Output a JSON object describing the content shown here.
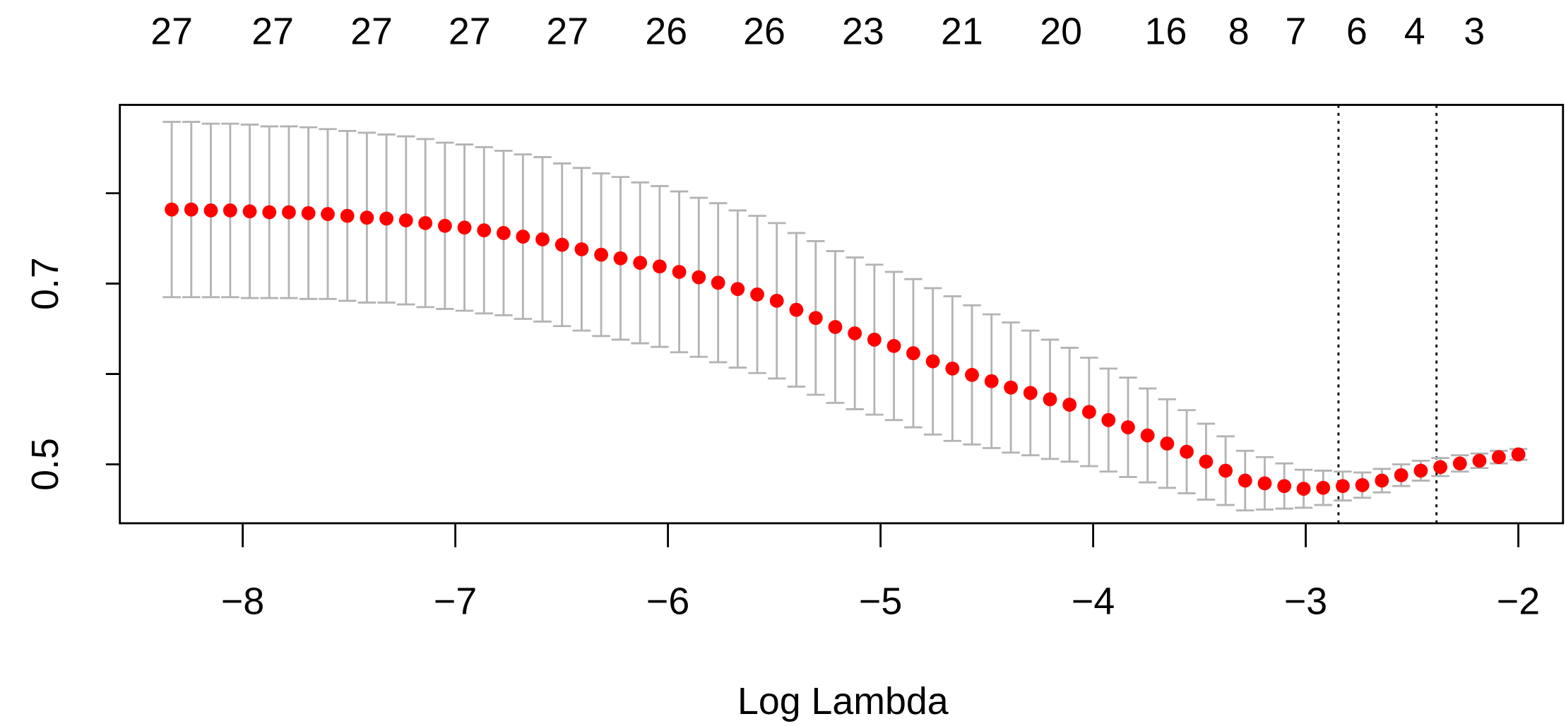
{
  "chart_data": {
    "type": "errorbar",
    "xlabel": "Log Lambda",
    "x": [
      -8.334,
      -8.242,
      -8.15,
      -8.059,
      -7.967,
      -7.875,
      -7.783,
      -7.691,
      -7.6,
      -7.508,
      -7.416,
      -7.324,
      -7.232,
      -7.141,
      -7.049,
      -6.957,
      -6.865,
      -6.773,
      -6.682,
      -6.59,
      -6.498,
      -6.406,
      -6.314,
      -6.223,
      -6.131,
      -6.039,
      -5.947,
      -5.855,
      -5.764,
      -5.672,
      -5.58,
      -5.488,
      -5.396,
      -5.305,
      -5.213,
      -5.121,
      -5.029,
      -4.937,
      -4.846,
      -4.754,
      -4.662,
      -4.57,
      -4.478,
      -4.387,
      -4.295,
      -4.203,
      -4.111,
      -4.019,
      -3.928,
      -3.836,
      -3.744,
      -3.652,
      -3.56,
      -3.469,
      -3.377,
      -3.285,
      -3.193,
      -3.101,
      -3.01,
      -2.918,
      -2.826,
      -2.734,
      -2.642,
      -2.551,
      -2.459,
      -2.367,
      -2.275,
      -2.183,
      -2.092,
      -2.0
    ],
    "values": [
      0.782,
      0.782,
      0.781,
      0.781,
      0.78,
      0.779,
      0.779,
      0.778,
      0.777,
      0.775,
      0.773,
      0.772,
      0.77,
      0.767,
      0.764,
      0.762,
      0.759,
      0.756,
      0.752,
      0.749,
      0.743,
      0.738,
      0.732,
      0.728,
      0.723,
      0.719,
      0.713,
      0.707,
      0.701,
      0.694,
      0.688,
      0.681,
      0.671,
      0.662,
      0.652,
      0.645,
      0.638,
      0.631,
      0.623,
      0.614,
      0.606,
      0.599,
      0.592,
      0.585,
      0.579,
      0.572,
      0.566,
      0.558,
      0.549,
      0.541,
      0.532,
      0.523,
      0.514,
      0.503,
      0.493,
      0.482,
      0.479,
      0.476,
      0.473,
      0.474,
      0.476,
      0.477,
      0.482,
      0.488,
      0.493,
      0.497,
      0.501,
      0.504,
      0.508,
      0.511
    ],
    "errors": [
      0.097,
      0.097,
      0.096,
      0.096,
      0.096,
      0.095,
      0.095,
      0.095,
      0.094,
      0.094,
      0.094,
      0.093,
      0.093,
      0.093,
      0.092,
      0.092,
      0.092,
      0.091,
      0.091,
      0.091,
      0.09,
      0.09,
      0.09,
      0.09,
      0.089,
      0.089,
      0.089,
      0.088,
      0.088,
      0.087,
      0.087,
      0.086,
      0.085,
      0.085,
      0.084,
      0.084,
      0.083,
      0.082,
      0.082,
      0.081,
      0.08,
      0.077,
      0.074,
      0.072,
      0.069,
      0.066,
      0.063,
      0.06,
      0.057,
      0.055,
      0.052,
      0.049,
      0.046,
      0.042,
      0.038,
      0.033,
      0.029,
      0.025,
      0.021,
      0.019,
      0.016,
      0.014,
      0.013,
      0.012,
      0.011,
      0.01,
      0.009,
      0.008,
      0.007,
      0.006
    ],
    "color": "#ff0000",
    "error_color": "#b3b3b3",
    "vlines": [
      -2.846,
      -2.385
    ],
    "top_labels": {
      "x": [
        -8.334,
        -7.859,
        -7.394,
        -6.933,
        -6.473,
        -6.008,
        -5.547,
        -5.082,
        -4.617,
        -4.151,
        -3.658,
        -3.315,
        -3.047,
        -2.76,
        -2.488,
        -2.207
      ],
      "labels": [
        27,
        27,
        27,
        27,
        27,
        26,
        26,
        23,
        21,
        20,
        16,
        8,
        7,
        6,
        4,
        3
      ]
    },
    "xlim": [
      -8.578,
      -1.79
    ],
    "ylim": [
      0.4348,
      0.8978
    ],
    "xticks": [
      {
        "value": -8,
        "label": "−8"
      },
      {
        "value": -7,
        "label": "−7"
      },
      {
        "value": -6,
        "label": "−6"
      },
      {
        "value": -5,
        "label": "−5"
      },
      {
        "value": -4,
        "label": "−4"
      },
      {
        "value": -3,
        "label": "−3"
      },
      {
        "value": -2,
        "label": "−2"
      }
    ],
    "yticks": [
      0.5,
      {
        "value": 0.6,
        "label": null
      },
      0.7,
      {
        "value": 0.8,
        "label": null
      }
    ]
  }
}
